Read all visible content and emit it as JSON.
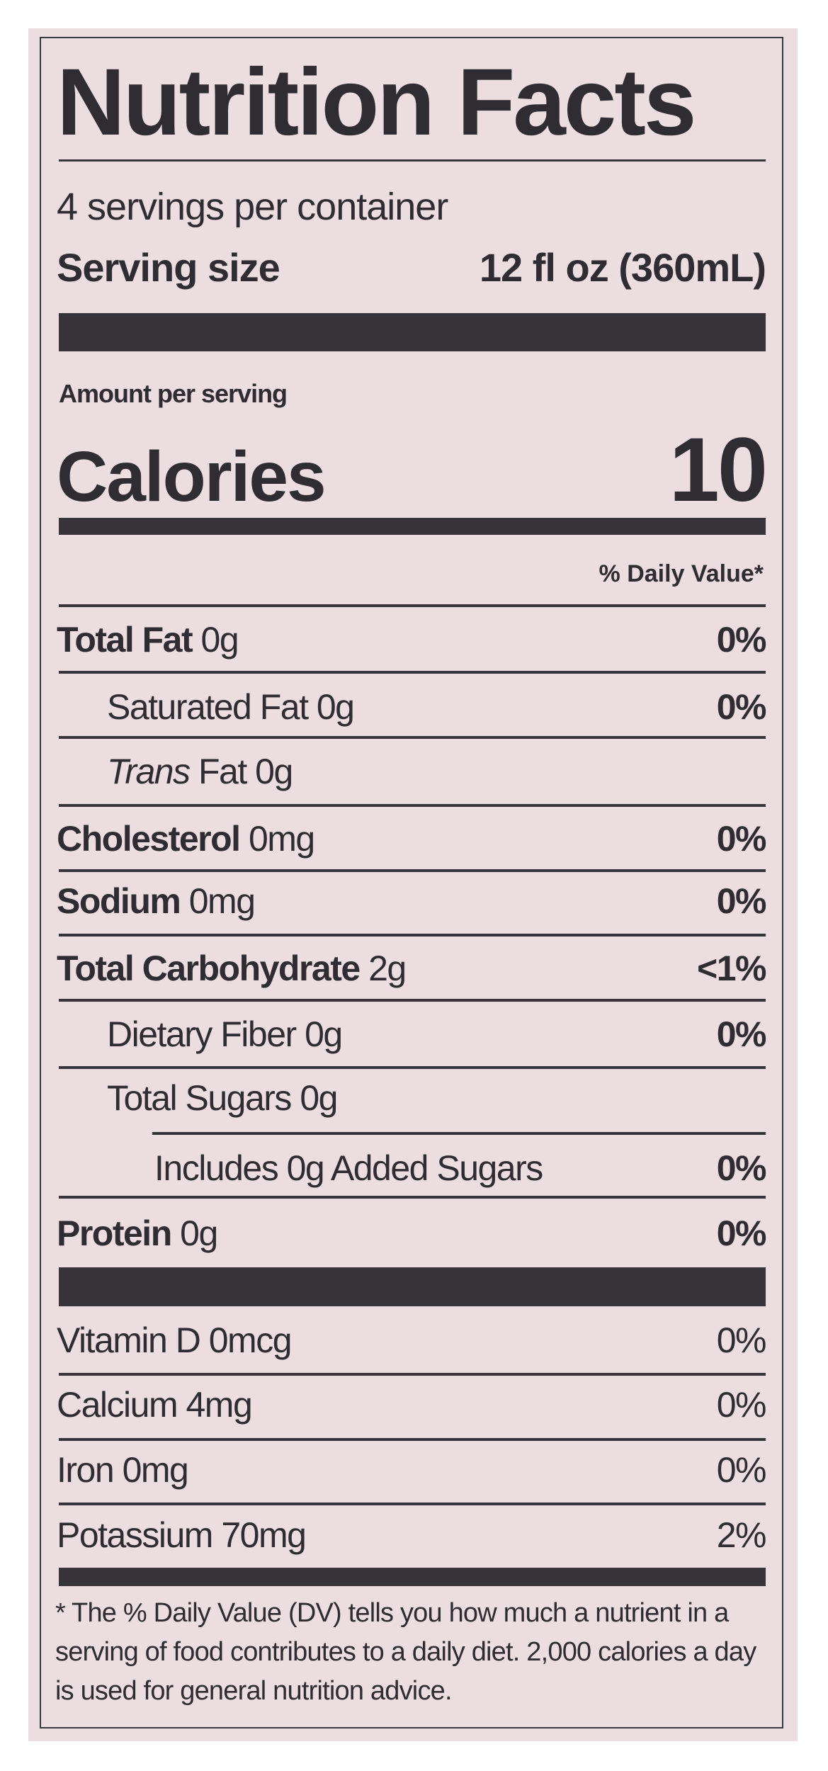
{
  "title": "Nutrition Facts",
  "servings_per_container": "4 servings per container",
  "serving_size": {
    "label": "Serving size",
    "value": "12 fl oz (360mL)"
  },
  "amount_per_serving": "Amount per serving",
  "calories": {
    "label": "Calories",
    "value": "10"
  },
  "daily_value_header": "% Daily Value*",
  "nutrients": [
    {
      "name": "Total Fat",
      "amount": "0g",
      "dv": "0%"
    },
    {
      "name": "Saturated Fat",
      "amount": "0g",
      "dv": "0%"
    },
    {
      "name": "Trans",
      "name_rest": "Fat",
      "amount": "0g",
      "dv": ""
    },
    {
      "name": "Cholesterol",
      "amount": "0mg",
      "dv": "0%"
    },
    {
      "name": "Sodium",
      "amount": "0mg",
      "dv": "0%"
    },
    {
      "name": "Total Carbohydrate",
      "amount": "2g",
      "dv": "<1%"
    },
    {
      "name": "Dietary Fiber",
      "amount": "0g",
      "dv": "0%"
    },
    {
      "name": "Total Sugars",
      "amount": "0g",
      "dv": ""
    },
    {
      "name": "Includes 0g Added Sugars",
      "amount": "",
      "dv": "0%"
    },
    {
      "name": "Protein",
      "amount": "0g",
      "dv": "0%"
    }
  ],
  "vitamins": [
    {
      "name": "Vitamin D",
      "amount": "0mcg",
      "dv": "0%"
    },
    {
      "name": "Calcium",
      "amount": "4mg",
      "dv": "0%"
    },
    {
      "name": "Iron",
      "amount": "0mg",
      "dv": "0%"
    },
    {
      "name": "Potassium",
      "amount": "70mg",
      "dv": "2%"
    }
  ],
  "footnote": "* The % Daily Value (DV) tells you how much a nutrient in a serving of food contributes to a daily diet. 2,000 calories a day is used for general nutrition advice.",
  "colors": {
    "label_background": "#ecdde0",
    "ink": "#2f2d31"
  }
}
